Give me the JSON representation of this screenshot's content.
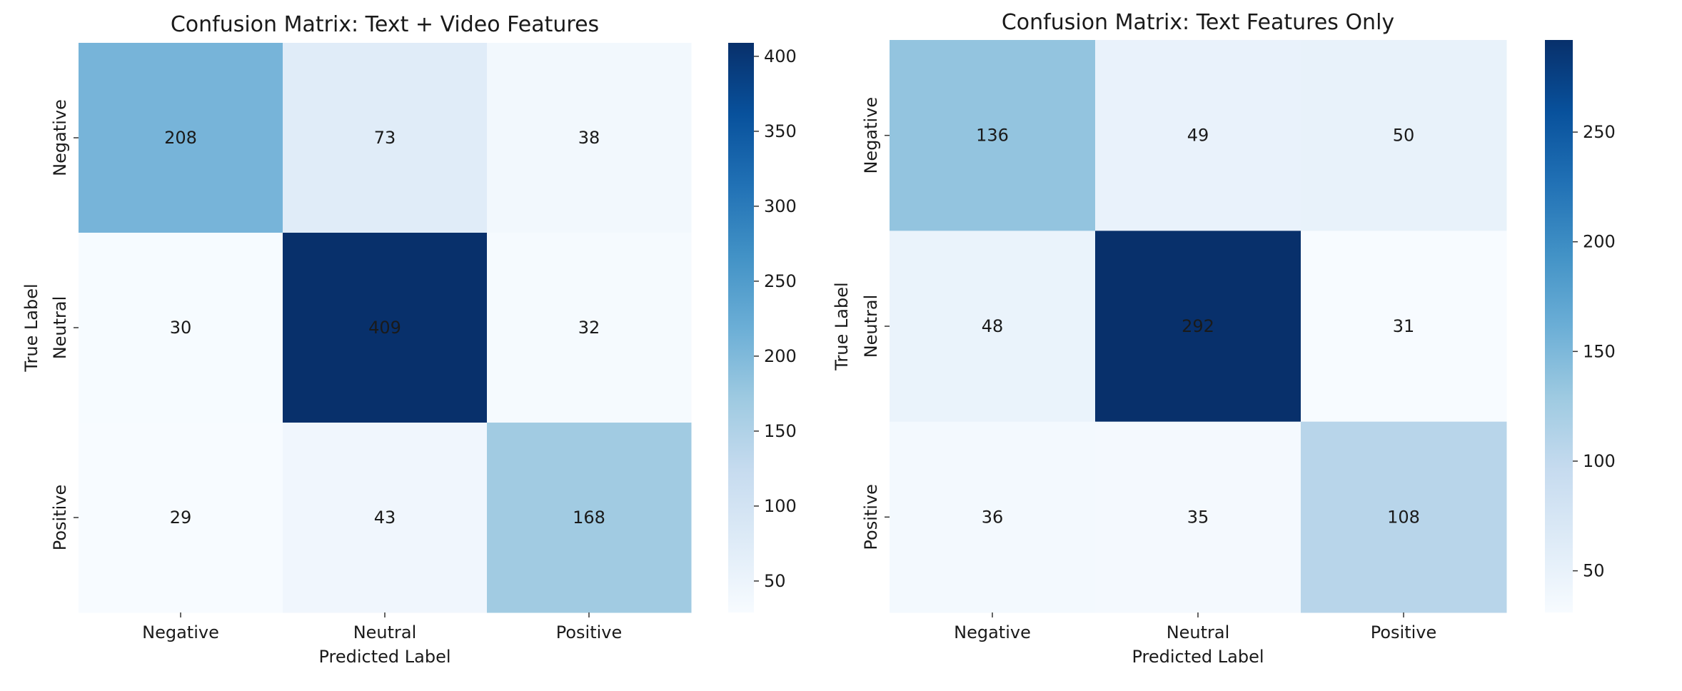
{
  "chart_data": [
    {
      "type": "heatmap",
      "title": "Confusion Matrix: Text + Video Features",
      "xlabel": "Predicted Label",
      "ylabel": "True Label",
      "x_categories": [
        "Negative",
        "Neutral",
        "Positive"
      ],
      "y_categories": [
        "Negative",
        "Neutral",
        "Positive"
      ],
      "values": [
        [
          208,
          73,
          38
        ],
        [
          30,
          409,
          32
        ],
        [
          29,
          43,
          168
        ]
      ],
      "colormap": "Blues",
      "colorbar_ticks": [
        50,
        100,
        150,
        200,
        250,
        300,
        350,
        400
      ],
      "vmin": 29,
      "vmax": 409
    },
    {
      "type": "heatmap",
      "title": "Confusion Matrix: Text Features Only",
      "xlabel": "Predicted Label",
      "ylabel": "True Label",
      "x_categories": [
        "Negative",
        "Neutral",
        "Positive"
      ],
      "y_categories": [
        "Negative",
        "Neutral",
        "Positive"
      ],
      "values": [
        [
          136,
          49,
          50
        ],
        [
          48,
          292,
          31
        ],
        [
          36,
          35,
          108
        ]
      ],
      "colormap": "Blues",
      "colorbar_ticks": [
        50,
        100,
        150,
        200,
        250
      ],
      "vmin": 31,
      "vmax": 292
    }
  ],
  "colors": {
    "blues_ramp": [
      "#f7fbff",
      "#deebf7",
      "#c6dbef",
      "#9ecae1",
      "#6baed6",
      "#4292c6",
      "#2171b5",
      "#08519c",
      "#08306b"
    ],
    "dark_text": "#262626",
    "light_text": "#ffffff"
  }
}
